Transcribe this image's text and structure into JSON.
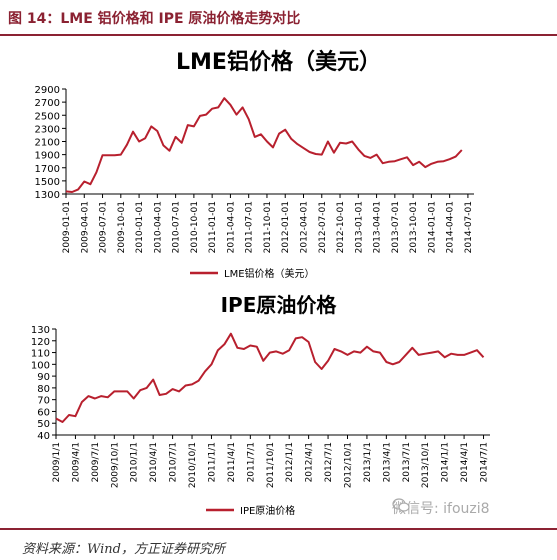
{
  "figure": {
    "title": "图 14：LME 铝价格和 IPE 原油价格走势对比",
    "source": "资料来源：Wind，方正证券研究所",
    "watermark": "微信号: ifouzi8",
    "accent_color": "#8b2232"
  },
  "chart_data": [
    {
      "type": "line",
      "title": "LME铝价格（美元）",
      "xlabel": "",
      "ylabel": "",
      "ylim": [
        1300,
        2900
      ],
      "yticks": [
        1300,
        1500,
        1700,
        1900,
        2100,
        2300,
        2500,
        2700,
        2900
      ],
      "xlim": [
        "2009-01",
        "2014-08"
      ],
      "tick_labels": [
        "2009-01-01",
        "2009-04-01",
        "2009-07-01",
        "2009-10-01",
        "2010-01-01",
        "2010-04-01",
        "2010-07-01",
        "2010-10-01",
        "2011-01-01",
        "2011-04-01",
        "2011-07-01",
        "2011-10-01",
        "2012-01-01",
        "2012-04-01",
        "2012-07-01",
        "2012-10-01",
        "2013-01-01",
        "2013-04-01",
        "2013-07-01",
        "2013-10-01",
        "2014-01-01",
        "2014-04-01",
        "2014-07-01"
      ],
      "grid": false,
      "legend_position": "bottom",
      "series": [
        {
          "name": "LME铝价格（美元）",
          "color": "#b8202e",
          "x": [
            "2009-01",
            "2009-02",
            "2009-03",
            "2009-04",
            "2009-05",
            "2009-06",
            "2009-07",
            "2009-08",
            "2009-09",
            "2009-10",
            "2009-11",
            "2009-12",
            "2010-01",
            "2010-02",
            "2010-03",
            "2010-04",
            "2010-05",
            "2010-06",
            "2010-07",
            "2010-08",
            "2010-09",
            "2010-10",
            "2010-11",
            "2010-12",
            "2011-01",
            "2011-02",
            "2011-03",
            "2011-04",
            "2011-05",
            "2011-06",
            "2011-07",
            "2011-08",
            "2011-09",
            "2011-10",
            "2011-11",
            "2011-12",
            "2012-01",
            "2012-02",
            "2012-03",
            "2012-04",
            "2012-05",
            "2012-06",
            "2012-07",
            "2012-08",
            "2012-09",
            "2012-10",
            "2012-11",
            "2012-12",
            "2013-01",
            "2013-02",
            "2013-03",
            "2013-04",
            "2013-05",
            "2013-06",
            "2013-07",
            "2013-08",
            "2013-09",
            "2013-10",
            "2013-11",
            "2013-12",
            "2014-01",
            "2014-02",
            "2014-03",
            "2014-04",
            "2014-05",
            "2014-06",
            "2014-07",
            "2014-08"
          ],
          "values": [
            1340,
            1330,
            1370,
            1490,
            1450,
            1630,
            1890,
            1890,
            1890,
            1900,
            2050,
            2250,
            2100,
            2150,
            2330,
            2260,
            2040,
            1960,
            2170,
            2080,
            2350,
            2330,
            2490,
            2510,
            2600,
            2620,
            2760,
            2660,
            2510,
            2620,
            2440,
            2170,
            2210,
            2100,
            2010,
            2220,
            2280,
            2140,
            2060,
            2000,
            1940,
            1910,
            1900,
            2100,
            1930,
            2080,
            2070,
            2100,
            1980,
            1880,
            1850,
            1900,
            1770,
            1790,
            1800,
            1830,
            1860,
            1740,
            1790,
            1710,
            1760,
            1790,
            1800,
            1830,
            1870,
            1970,
            null,
            null
          ]
        }
      ]
    },
    {
      "type": "line",
      "title": "IPE原油价格",
      "xlabel": "",
      "ylabel": "",
      "ylim": [
        40,
        130
      ],
      "yticks": [
        40,
        50,
        60,
        70,
        80,
        90,
        100,
        110,
        120,
        130
      ],
      "xlim": [
        "2009-01",
        "2014-08"
      ],
      "tick_labels": [
        "2009/1/1",
        "2009/4/1",
        "2009/7/1",
        "2009/10/1",
        "2010/1/1",
        "2010/4/1",
        "2010/7/1",
        "2010/10/1",
        "2011/1/1",
        "2011/4/1",
        "2011/7/1",
        "2011/10/1",
        "2012/1/1",
        "2012/4/1",
        "2012/7/1",
        "2012/10/1",
        "2013/1/1",
        "2013/4/1",
        "2013/7/1",
        "2013/10/1",
        "2014/1/1",
        "2014/4/1",
        "2014/7/1"
      ],
      "grid": false,
      "legend_position": "bottom",
      "series": [
        {
          "name": "IPE原油价格",
          "color": "#b8202e",
          "x": [
            "2009-01",
            "2009-02",
            "2009-03",
            "2009-04",
            "2009-05",
            "2009-06",
            "2009-07",
            "2009-08",
            "2009-09",
            "2009-10",
            "2009-11",
            "2009-12",
            "2010-01",
            "2010-02",
            "2010-03",
            "2010-04",
            "2010-05",
            "2010-06",
            "2010-07",
            "2010-08",
            "2010-09",
            "2010-10",
            "2010-11",
            "2010-12",
            "2011-01",
            "2011-02",
            "2011-03",
            "2011-04",
            "2011-05",
            "2011-06",
            "2011-07",
            "2011-08",
            "2011-09",
            "2011-10",
            "2011-11",
            "2011-12",
            "2012-01",
            "2012-02",
            "2012-03",
            "2012-04",
            "2012-05",
            "2012-06",
            "2012-07",
            "2012-08",
            "2012-09",
            "2012-10",
            "2012-11",
            "2012-12",
            "2013-01",
            "2013-02",
            "2013-03",
            "2013-04",
            "2013-05",
            "2013-06",
            "2013-07",
            "2013-08",
            "2013-09",
            "2013-10",
            "2013-11",
            "2013-12",
            "2014-01",
            "2014-02",
            "2014-03",
            "2014-04",
            "2014-05",
            "2014-06",
            "2014-07",
            "2014-08"
          ],
          "values": [
            54,
            51,
            57,
            56,
            68,
            73,
            71,
            73,
            72,
            77,
            77,
            77,
            71,
            78,
            80,
            87,
            74,
            75,
            79,
            77,
            82,
            83,
            86,
            94,
            100,
            112,
            117,
            126,
            114,
            113,
            116,
            115,
            103,
            110,
            111,
            109,
            112,
            122,
            123,
            119,
            102,
            96,
            103,
            113,
            111,
            108,
            111,
            110,
            115,
            111,
            110,
            102,
            100,
            102,
            108,
            114,
            108,
            109,
            110,
            111,
            106,
            109,
            108,
            108,
            110,
            112,
            106,
            null
          ]
        }
      ]
    }
  ]
}
